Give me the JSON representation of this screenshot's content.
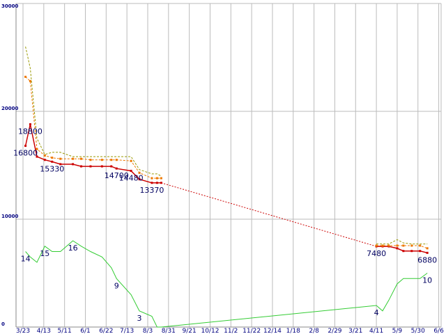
{
  "chart_data": {
    "type": "line",
    "title": "",
    "xlabel": "",
    "ylabel": "",
    "ylim": [
      0,
      30000
    ],
    "grid": true,
    "y_ticks": [
      "0",
      "10000",
      "20000",
      "30000"
    ],
    "x_ticks": [
      "3/23",
      "4/13",
      "5/11",
      "6/1",
      "6/22",
      "7/13",
      "8/3",
      "8/31",
      "9/21",
      "10/12",
      "11/2",
      "11/22",
      "12/14",
      "1/18",
      "2/8",
      "2/29",
      "3/21",
      "4/11",
      "5/9",
      "5/30",
      "6/6"
    ],
    "series": [
      {
        "key": "price",
        "color": "#cc0000",
        "style": "solid-markers",
        "points": [
          [
            0,
            16800
          ],
          [
            1,
            18800
          ],
          [
            2,
            15800
          ],
          [
            3,
            15500
          ],
          [
            4,
            15330
          ],
          [
            5,
            15100
          ],
          [
            6,
            15100
          ],
          [
            7,
            14900
          ],
          [
            8,
            14900
          ],
          [
            9,
            14900
          ],
          [
            10,
            14900
          ],
          [
            11,
            14700
          ],
          [
            12,
            14480
          ],
          [
            13,
            13700
          ],
          [
            14,
            13370
          ],
          [
            15,
            13370
          ],
          [
            16,
            13370
          ],
          [
            17,
            7480
          ],
          [
            18,
            7480
          ],
          [
            19,
            7480
          ],
          [
            20,
            7300
          ],
          [
            21,
            7050
          ],
          [
            22,
            7050
          ],
          [
            23,
            7050
          ],
          [
            24,
            6880
          ]
        ],
        "gap_after_index": 16
      },
      {
        "key": "avg",
        "color": "#ee7700",
        "style": "dashed-markers",
        "points": [
          [
            0,
            23200
          ],
          [
            1,
            22800
          ],
          [
            2,
            16500
          ],
          [
            3,
            15900
          ],
          [
            4,
            15700
          ],
          [
            5,
            15600
          ],
          [
            6,
            15600
          ],
          [
            7,
            15600
          ],
          [
            8,
            15500
          ],
          [
            9,
            15500
          ],
          [
            10,
            15500
          ],
          [
            11,
            15500
          ],
          [
            12,
            15400
          ],
          [
            13,
            14300
          ],
          [
            14,
            13800
          ],
          [
            15,
            13800
          ],
          [
            16,
            13800
          ],
          [
            17,
            7550
          ],
          [
            18,
            7550
          ],
          [
            19,
            7550
          ],
          [
            20,
            7550
          ],
          [
            21,
            7550
          ],
          [
            22,
            7550
          ],
          [
            23,
            7550
          ],
          [
            24,
            7300
          ]
        ],
        "gap_after_index": 16
      },
      {
        "key": "high",
        "color": "#999900",
        "style": "dashed",
        "points": [
          [
            0,
            26000
          ],
          [
            1,
            24000
          ],
          [
            2,
            17500
          ],
          [
            3,
            16000
          ],
          [
            4,
            16200
          ],
          [
            5,
            16200
          ],
          [
            6,
            15800
          ],
          [
            7,
            15800
          ],
          [
            8,
            15800
          ],
          [
            9,
            15800
          ],
          [
            10,
            15800
          ],
          [
            11,
            15800
          ],
          [
            12,
            15800
          ],
          [
            13,
            14600
          ],
          [
            14,
            14200
          ],
          [
            15,
            14200
          ],
          [
            16,
            14000
          ],
          [
            17,
            7700
          ],
          [
            18,
            7700
          ],
          [
            19,
            7700
          ],
          [
            20,
            8100
          ],
          [
            21,
            7800
          ],
          [
            22,
            7700
          ],
          [
            23,
            7700
          ],
          [
            24,
            7700
          ]
        ],
        "gap_after_index": 16
      },
      {
        "key": "count",
        "color": "#33cc33",
        "style": "solid",
        "points": [
          [
            0,
            14
          ],
          [
            1,
            13
          ],
          [
            2,
            12
          ],
          [
            3,
            15
          ],
          [
            4,
            14
          ],
          [
            5,
            14
          ],
          [
            6,
            16
          ],
          [
            7,
            15
          ],
          [
            8,
            14
          ],
          [
            9,
            13
          ],
          [
            10,
            11
          ],
          [
            11,
            9
          ],
          [
            12,
            6
          ],
          [
            13,
            3
          ],
          [
            14,
            2
          ],
          [
            15,
            0
          ],
          [
            16,
            0
          ],
          [
            17,
            4
          ],
          [
            18,
            3
          ],
          [
            19,
            5
          ],
          [
            20,
            8
          ],
          [
            21,
            9
          ],
          [
            22,
            9
          ],
          [
            23,
            9
          ],
          [
            24,
            10
          ]
        ]
      }
    ],
    "point_x_positions": [
      0.12,
      0.35,
      0.67,
      1.05,
      1.4,
      1.8,
      2.4,
      2.8,
      3.25,
      3.8,
      4.25,
      4.5,
      5.2,
      5.6,
      6.2,
      6.45,
      6.65,
      17.0,
      17.3,
      17.6,
      18.0,
      18.3,
      18.7,
      19.1,
      19.45
    ],
    "price_axis_max": 30000,
    "count_axis_max": 60,
    "annotations": [
      {
        "series": "price",
        "index": 0,
        "text": "16800"
      },
      {
        "series": "price",
        "index": 1,
        "text": "18800"
      },
      {
        "series": "price",
        "index": 4,
        "text": "15330"
      },
      {
        "series": "price",
        "index": 11,
        "text": "14700"
      },
      {
        "series": "price",
        "index": 12,
        "text": "14480"
      },
      {
        "series": "price",
        "index": 14,
        "text": "13370"
      },
      {
        "series": "price",
        "index": 17,
        "text": "7480"
      },
      {
        "series": "price",
        "index": 24,
        "text": "6880"
      },
      {
        "series": "count",
        "index": 0,
        "text": "14"
      },
      {
        "series": "count",
        "index": 3,
        "text": "15"
      },
      {
        "series": "count",
        "index": 6,
        "text": "16"
      },
      {
        "series": "count",
        "index": 11,
        "text": "9"
      },
      {
        "series": "count",
        "index": 13,
        "text": "3"
      },
      {
        "series": "count",
        "index": 17,
        "text": "4"
      },
      {
        "series": "count",
        "index": 24,
        "text": "10"
      }
    ]
  }
}
